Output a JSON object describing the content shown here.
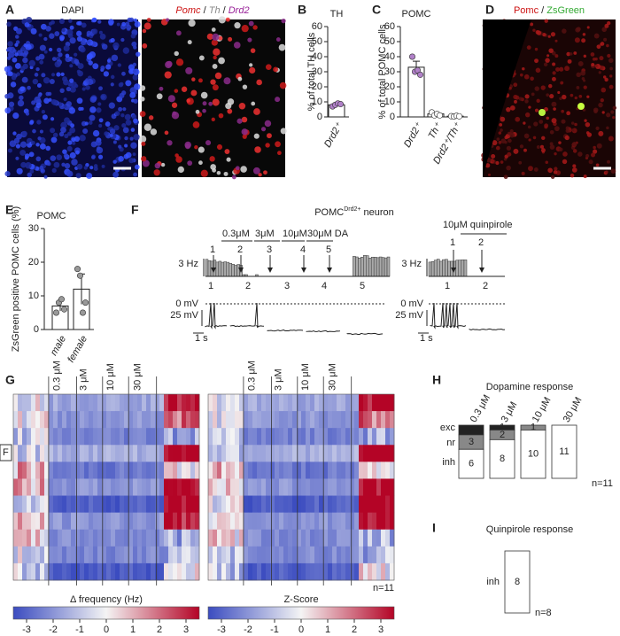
{
  "A": {
    "letter": "A",
    "left": "DAPI",
    "right": [
      "Pomc",
      " / ",
      "Th",
      " / ",
      "Drd2"
    ]
  },
  "B": {
    "letter": "B",
    "title": "TH",
    "ylabel": "% of total TH cells",
    "categories": [
      "Drd2⁺"
    ],
    "values": [
      8
    ],
    "errors": [
      1
    ],
    "points": [
      [
        7,
        8,
        9,
        8.5
      ]
    ],
    "ylim": [
      0,
      60
    ],
    "yticks": [
      0,
      10,
      20,
      30,
      40,
      50,
      60
    ]
  },
  "C": {
    "letter": "C",
    "title": "POMC",
    "ylabel": "% of total POMC cells",
    "categories": [
      "Drd2⁺",
      "Th⁺",
      "Drd2⁺/Th⁺"
    ],
    "values": [
      33,
      2,
      0.5
    ],
    "errors": [
      4,
      1,
      0.3
    ],
    "points": [
      [
        40,
        30,
        31,
        28
      ],
      [
        3,
        1,
        2,
        1
      ],
      [
        0.5,
        0.3,
        0.8,
        0.4
      ]
    ],
    "ylim": [
      0,
      60
    ],
    "yticks": [
      0,
      10,
      20,
      30,
      40,
      50,
      60
    ]
  },
  "D": {
    "letter": "D",
    "label": [
      "Pomc",
      " / ",
      "ZsGreen"
    ]
  },
  "E": {
    "letter": "E",
    "title": "POMC",
    "ylabel": "ZsGreen positive POMC cells (%)",
    "categories": [
      "male",
      "female"
    ],
    "values": [
      7,
      12
    ],
    "errors": [
      1.5,
      4.5
    ],
    "points": [
      [
        5,
        8,
        9,
        6
      ],
      [
        18,
        16,
        5,
        8
      ]
    ],
    "ylim": [
      0,
      30
    ],
    "yticks": [
      0,
      10,
      20,
      30
    ]
  },
  "F": {
    "letter": "F",
    "title": {
      "base": "POMC",
      "sup": "Drd2+",
      "rest": " neuron"
    },
    "doses": [
      "0.3μM",
      "3μM",
      "10μM",
      "30μM DA"
    ],
    "arrows": [
      "1",
      "2",
      "3",
      "4",
      "5"
    ],
    "rate_scale": "3 Hz",
    "epochs": [
      "1",
      "2",
      "3",
      "4",
      "5"
    ],
    "zero": "0 mV",
    "vscale": "25 mV",
    "tscale": "1 s",
    "quin": "10μM quinpirole",
    "quin_arrows": [
      "1",
      "2"
    ],
    "quin_epochs": [
      "1",
      "2"
    ]
  },
  "G": {
    "letter": "G",
    "doses": [
      "0.3 μM",
      "3 μM",
      "10 μM",
      "30 μM"
    ],
    "row_marker": "F",
    "n": "n=11",
    "maps": [
      {
        "label": "Δ frequency (Hz)"
      },
      {
        "label": "Z-Score"
      }
    ],
    "cbar_ticks": [
      -3,
      -2,
      -1,
      0,
      1,
      2,
      3
    ],
    "cbar_lim": [
      -3.5,
      3.5
    ]
  },
  "H": {
    "letter": "H",
    "title": "Dopamine response",
    "columns": [
      "0.3 μM",
      "3 μM",
      "10 μM",
      "30 μM"
    ],
    "rows": [
      "exc",
      "nr",
      "inh"
    ],
    "colors": [
      "#222222",
      "#888888",
      "#ffffff"
    ],
    "counts": [
      [
        2,
        3,
        6
      ],
      [
        1,
        2,
        8
      ],
      [
        0,
        1,
        10
      ],
      [
        0,
        0,
        11
      ]
    ],
    "n": "n=11"
  },
  "I": {
    "letter": "I",
    "title": "Quinpirole response",
    "rows": [
      "inh"
    ],
    "counts": [
      8
    ],
    "n": "n=8"
  }
}
